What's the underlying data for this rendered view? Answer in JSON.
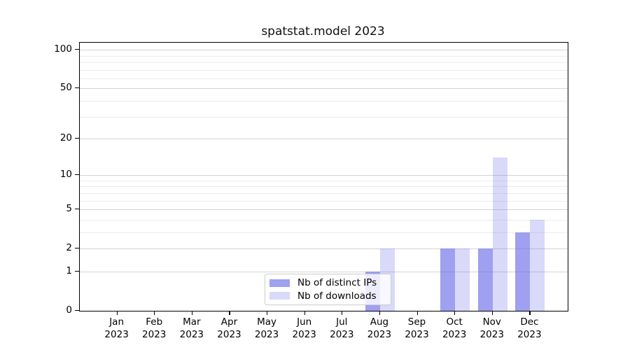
{
  "figure": {
    "title": "spatstat.model 2023",
    "background": "#ffffff"
  },
  "chart_data": {
    "type": "bar",
    "title": "spatstat.model 2023",
    "categories": [
      "Jan",
      "Feb",
      "Mar",
      "Apr",
      "May",
      "Jun",
      "Jul",
      "Aug",
      "Sep",
      "Oct",
      "Nov",
      "Dec"
    ],
    "category_year": "2023",
    "series": [
      {
        "name": "Nb of distinct IPs",
        "color": "rgba(102,102,230,0.62)",
        "values": [
          0,
          0,
          0,
          0,
          0,
          0,
          0,
          1,
          0,
          2,
          2,
          3
        ]
      },
      {
        "name": "Nb of downloads",
        "color": "rgba(102,102,230,0.25)",
        "values": [
          0,
          0,
          0,
          0,
          0,
          0,
          0,
          2,
          0,
          2,
          14,
          4
        ]
      }
    ],
    "xlabel": "",
    "ylabel": "",
    "yscale": "log1p",
    "ylim": [
      0,
      113
    ],
    "y_major_ticks": [
      0,
      1,
      2,
      5,
      10,
      20,
      50,
      100
    ],
    "y_minor_gridlines": [
      3,
      4,
      6,
      7,
      8,
      9,
      30,
      40,
      60,
      70,
      80,
      90
    ],
    "grid": true,
    "legend_position": "lower center"
  },
  "colors": {
    "grid_major": "#d3d3d3",
    "grid_minor": "#ececec",
    "axis": "#000000",
    "legend_border": "#cccccc",
    "legend_bg": "rgba(255,255,255,0.8)"
  }
}
